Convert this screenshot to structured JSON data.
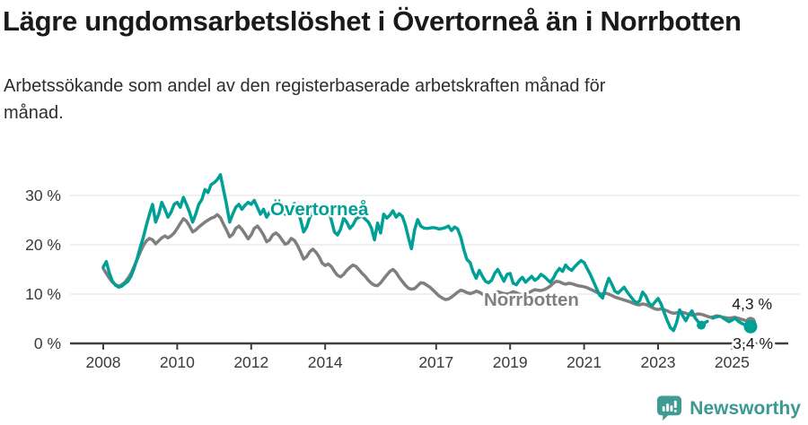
{
  "header": {
    "title": "Lägre ungdomsarbetslöshet i Övertorneå än i Norrbotten",
    "subtitle_line1": "Arbetssökande som andel av den registerbaserade arbetskraften månad för",
    "subtitle_line2": "månad."
  },
  "chart_data": {
    "type": "line",
    "frequency": "monthly",
    "x_start": "2008-01",
    "x_end": "2025-07",
    "ylim": [
      0,
      35
    ],
    "grid": "horizontal",
    "style": {
      "grid_color": "#e0e0e0",
      "axis_color": "#3f3f3f",
      "tick_text_color": "#3a3a3a",
      "value_label_color": "#1a1a1a",
      "halo_color": "#ffffff"
    },
    "yticks": [
      {
        "value": 0,
        "label": "0 %"
      },
      {
        "value": 10,
        "label": "10 %"
      },
      {
        "value": 20,
        "label": "20 %"
      },
      {
        "value": 30,
        "label": "30 %"
      }
    ],
    "xticks": [
      {
        "year": 2008,
        "label": "2008"
      },
      {
        "year": 2010,
        "label": "2010"
      },
      {
        "year": 2012,
        "label": "2012"
      },
      {
        "year": 2014,
        "label": "2014"
      },
      {
        "year": 2017,
        "label": "2017"
      },
      {
        "year": 2019,
        "label": "2019"
      },
      {
        "year": 2021,
        "label": "2021"
      },
      {
        "year": 2023,
        "label": "2023"
      },
      {
        "year": 2025,
        "label": "2025"
      }
    ],
    "series": [
      {
        "name": "Norrbotten",
        "color": "#7f7f7f",
        "end_label": "4,3 %",
        "end_value": 4.3,
        "values": [
          15.2,
          14.2,
          13.2,
          12.4,
          11.9,
          11.6,
          11.9,
          12.4,
          13.2,
          14.2,
          15.6,
          17.0,
          18.5,
          19.8,
          20.8,
          21.3,
          21.0,
          20.2,
          20.8,
          21.4,
          21.8,
          21.4,
          21.8,
          22.4,
          23.3,
          24.3,
          25.3,
          24.8,
          23.8,
          22.6,
          23.0,
          23.6,
          24.1,
          24.6,
          25.0,
          25.4,
          25.6,
          26.1,
          25.5,
          24.2,
          23.0,
          21.6,
          22.1,
          23.3,
          23.8,
          23.1,
          22.2,
          21.2,
          22.0,
          23.3,
          23.8,
          23.0,
          22.0,
          20.6,
          21.0,
          22.0,
          22.4,
          21.9,
          21.0,
          20.1,
          20.4,
          21.3,
          20.9,
          19.9,
          18.6,
          17.1,
          17.6,
          18.6,
          19.1,
          18.5,
          17.6,
          16.3,
          15.8,
          16.1,
          15.6,
          14.6,
          13.8,
          13.5,
          14.0,
          14.8,
          15.4,
          15.9,
          15.6,
          14.9,
          14.2,
          13.6,
          12.8,
          12.2,
          11.8,
          11.7,
          12.3,
          13.1,
          13.9,
          14.6,
          15.0,
          14.4,
          13.4,
          12.6,
          11.8,
          11.2,
          11.0,
          11.1,
          11.7,
          12.3,
          12.2,
          11.8,
          11.4,
          10.8,
          10.2,
          9.6,
          9.2,
          8.9,
          9.0,
          9.4,
          9.9,
          10.4,
          10.8,
          10.6,
          10.3,
          10.1,
          10.3,
          10.6,
          10.4,
          10.0,
          9.7,
          9.5,
          9.8,
          10.2,
          10.5,
          10.3,
          10.1,
          10.0,
          10.2,
          10.5,
          10.3,
          10.0,
          9.8,
          9.9,
          10.2,
          10.6,
          10.9,
          10.8,
          10.7,
          10.9,
          11.2,
          11.6,
          12.2,
          12.6,
          12.5,
          12.2,
          12.0,
          12.2,
          12.1,
          11.9,
          11.7,
          11.6,
          11.5,
          11.3,
          11.0,
          10.7,
          10.4,
          10.1,
          10.0,
          10.2,
          10.0,
          9.7,
          9.4,
          9.2,
          9.0,
          8.8,
          8.6,
          8.4,
          8.1,
          7.9,
          7.8,
          8.0,
          7.9,
          7.6,
          7.3,
          7.0,
          6.9,
          7.0,
          6.8,
          6.6,
          6.3,
          6.1,
          6.2,
          6.4,
          6.3,
          6.1,
          5.9,
          5.7,
          5.8,
          6.0,
          5.9,
          5.7,
          5.5,
          5.3,
          5.4,
          5.6,
          5.5,
          5.3,
          5.2,
          5.1,
          5.2,
          5.3,
          5.1,
          4.9,
          4.7,
          4.5,
          4.3
        ]
      },
      {
        "name": "Övertorneå",
        "color": "#00a096",
        "end_label": "3,4 %",
        "end_value": 3.4,
        "gap_dot_index": 194,
        "dashed_from_index": 194,
        "dashed_to_index": 201,
        "values": [
          15.5,
          16.6,
          14.2,
          12.6,
          11.8,
          11.4,
          11.6,
          12.1,
          12.6,
          13.6,
          15.2,
          17.2,
          19.5,
          21.5,
          24.0,
          26.2,
          28.2,
          24.6,
          26.2,
          28.6,
          27.2,
          25.6,
          26.6,
          28.2,
          28.6,
          27.6,
          29.6,
          28.2,
          26.6,
          24.6,
          26.2,
          28.2,
          29.2,
          31.2,
          30.6,
          32.2,
          32.6,
          33.2,
          34.2,
          31.2,
          28.2,
          24.6,
          26.2,
          27.6,
          28.2,
          27.2,
          28.0,
          28.6,
          28.2,
          29.0,
          27.6,
          26.2,
          27.2,
          25.6,
          26.6,
          28.0,
          28.6,
          28.2,
          27.6,
          26.2,
          26.6,
          28.0,
          28.4,
          27.0,
          25.2,
          22.6,
          23.6,
          25.6,
          26.6,
          27.4,
          26.4,
          26.2,
          26.0,
          27.0,
          25.0,
          22.6,
          22.0,
          23.2,
          25.4,
          24.6,
          23.3,
          24.0,
          25.2,
          25.6,
          25.8,
          25.2,
          24.6,
          23.4,
          21.0,
          24.4,
          22.4,
          26.2,
          25.4,
          26.0,
          26.9,
          25.6,
          26.3,
          25.8,
          24.0,
          21.5,
          19.2,
          23.0,
          25.1,
          23.8,
          23.4,
          23.3,
          23.4,
          23.5,
          23.4,
          23.2,
          23.3,
          23.5,
          23.8,
          22.9,
          23.6,
          23.2,
          21.5,
          19.0,
          17.0,
          16.4,
          14.5,
          13.2,
          14.8,
          13.6,
          12.6,
          12.3,
          12.8,
          14.2,
          15.0,
          13.8,
          12.6,
          14.0,
          14.2,
          12.2,
          11.9,
          12.8,
          13.4,
          12.4,
          13.0,
          13.6,
          12.8,
          13.2,
          14.0,
          13.6,
          13.0,
          12.4,
          13.2,
          14.4,
          15.2,
          14.6,
          15.9,
          15.2,
          14.8,
          15.6,
          16.2,
          16.8,
          16.4,
          15.2,
          14.0,
          12.6,
          11.2,
          9.8,
          9.2,
          11.4,
          13.2,
          12.0,
          10.6,
          10.2,
          10.8,
          11.4,
          10.4,
          9.6,
          8.8,
          8.2,
          8.6,
          10.4,
          9.6,
          8.2,
          7.6,
          8.4,
          9.1,
          8.0,
          6.2,
          4.6,
          3.2,
          2.6,
          4.2,
          6.8,
          5.6,
          4.6,
          5.8,
          6.6,
          5.2,
          4.4,
          3.7,
          4.1,
          4.5,
          4.9,
          5.2,
          5.4,
          5.5,
          5.2,
          4.8,
          4.4,
          4.7,
          5.1,
          4.5,
          4.1,
          3.8,
          3.6,
          3.4
        ]
      }
    ]
  },
  "footer": {
    "brand": "Newsworthy",
    "logo_color": "#3f9c93"
  }
}
